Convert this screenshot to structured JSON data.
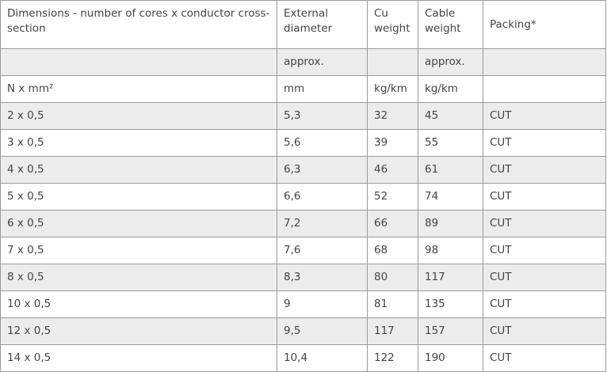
{
  "table": {
    "headers": {
      "dimensions": "Dimensions - number of cores x conductor cross-section",
      "external_diameter": "External diameter",
      "cu_weight": "Cu weight",
      "cable_weight": "Cable weight",
      "packing": "Packing*"
    },
    "approx_row": {
      "dimensions": "",
      "external_diameter": "approx.",
      "cu_weight": "",
      "cable_weight": "approx.",
      "packing": ""
    },
    "unit_row": {
      "dimensions": "N x mm²",
      "external_diameter": "mm",
      "cu_weight": "kg/km",
      "cable_weight": "kg/km",
      "packing": ""
    },
    "rows": [
      {
        "dimensions": "2 x 0,5",
        "external_diameter": "5,3",
        "cu_weight": "32",
        "cable_weight": "45",
        "packing": "CUT"
      },
      {
        "dimensions": "3 x 0,5",
        "external_diameter": "5,6",
        "cu_weight": "39",
        "cable_weight": "55",
        "packing": "CUT"
      },
      {
        "dimensions": "4 x 0,5",
        "external_diameter": "6,3",
        "cu_weight": "46",
        "cable_weight": "61",
        "packing": "CUT"
      },
      {
        "dimensions": "5 x 0,5",
        "external_diameter": "6,6",
        "cu_weight": "52",
        "cable_weight": "74",
        "packing": "CUT"
      },
      {
        "dimensions": "6 x 0,5",
        "external_diameter": "7,2",
        "cu_weight": "66",
        "cable_weight": "89",
        "packing": "CUT"
      },
      {
        "dimensions": "7 x 0,5",
        "external_diameter": "7,6",
        "cu_weight": "68",
        "cable_weight": "98",
        "packing": "CUT"
      },
      {
        "dimensions": "8 x 0,5",
        "external_diameter": "8,3",
        "cu_weight": "80",
        "cable_weight": "117",
        "packing": "CUT"
      },
      {
        "dimensions": "10 x 0,5",
        "external_diameter": "9",
        "cu_weight": "81",
        "cable_weight": "135",
        "packing": "CUT"
      },
      {
        "dimensions": "12 x 0,5",
        "external_diameter": "9,5",
        "cu_weight": "117",
        "cable_weight": "157",
        "packing": "CUT"
      },
      {
        "dimensions": "14 x 0,5",
        "external_diameter": "10,4",
        "cu_weight": "122",
        "cable_weight": "190",
        "packing": "CUT"
      }
    ],
    "colors": {
      "shaded_row": "#ececec",
      "border": "#9a9a9a",
      "text": "#444444"
    }
  }
}
